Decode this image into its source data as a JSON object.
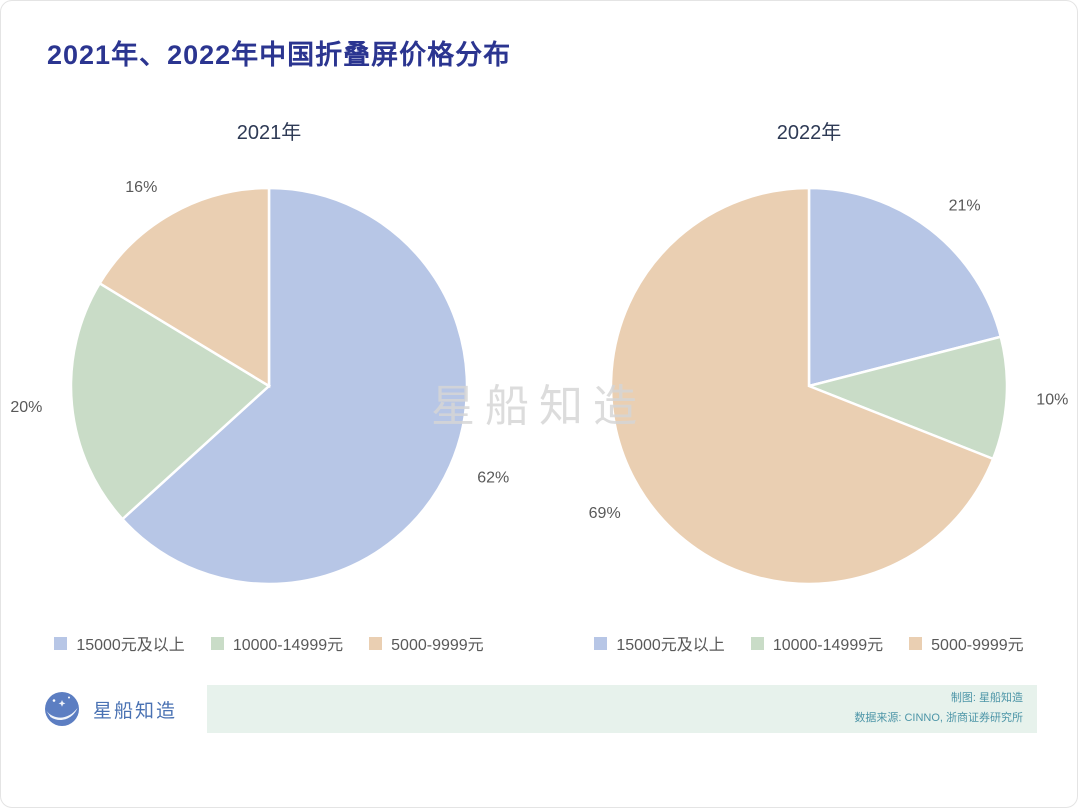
{
  "page": {
    "title": "2021年、2022年中国折叠屏价格分布",
    "watermark": "星船知造"
  },
  "chart_data": [
    {
      "type": "pie",
      "title": "2021年",
      "labels": [
        "15000元及以上",
        "10000-14999元",
        "5000-9999元"
      ],
      "values": [
        62,
        20,
        16
      ],
      "unit": "%",
      "colors": [
        "#b7c6e6",
        "#c9dcc7",
        "#eacfb2"
      ],
      "start_angle": 0,
      "direction": "clockwise",
      "legend_position": "bottom"
    },
    {
      "type": "pie",
      "title": "2022年",
      "labels": [
        "15000元及以上",
        "10000-14999元",
        "5000-9999元"
      ],
      "values": [
        21,
        10,
        69
      ],
      "unit": "%",
      "colors": [
        "#b7c6e6",
        "#c9dcc7",
        "#eacfb2"
      ],
      "start_angle": 0,
      "direction": "clockwise",
      "legend_position": "bottom"
    }
  ],
  "footer": {
    "brand": "星船知造",
    "credits": [
      "制图: 星船知造",
      "数据来源: CINNO, 浙商证券研究所"
    ]
  }
}
